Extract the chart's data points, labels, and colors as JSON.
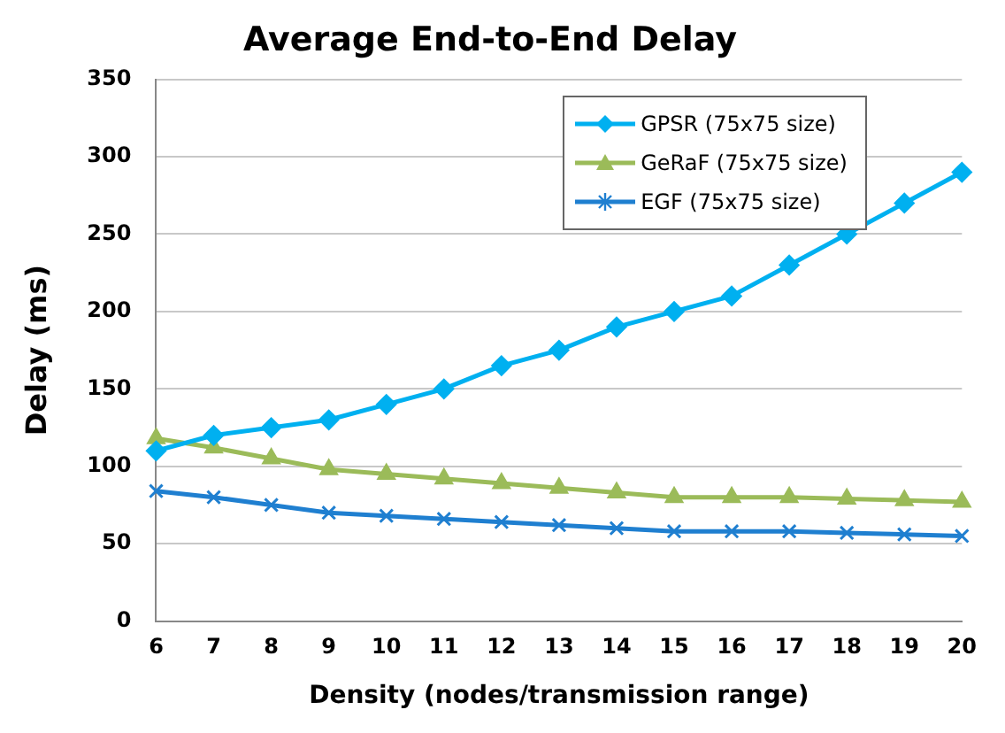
{
  "chart_data": {
    "type": "line",
    "title": "Average End-to-End Delay",
    "xlabel": "Density (nodes/transmission range)",
    "ylabel": "Delay (ms)",
    "categories": [
      "6",
      "7",
      "8",
      "9",
      "10",
      "11",
      "12",
      "13",
      "14",
      "15",
      "16",
      "17",
      "18",
      "19",
      "20"
    ],
    "series": [
      {
        "name": "GPSR (75x75 size)",
        "color": "#00b0f0",
        "marker": "diamond",
        "values": [
          110,
          120,
          125,
          130,
          140,
          150,
          165,
          175,
          190,
          200,
          210,
          230,
          250,
          270,
          290
        ]
      },
      {
        "name": "GeRaF (75x75 size)",
        "color": "#9bbb59",
        "marker": "triangle",
        "values": [
          118,
          112,
          105,
          98,
          95,
          92,
          89,
          86,
          83,
          80,
          80,
          80,
          79,
          78,
          77
        ]
      },
      {
        "name": "EGF (75x75 size)",
        "color": "#1f7fd0",
        "marker": "cross",
        "values": [
          84,
          80,
          75,
          70,
          68,
          66,
          64,
          62,
          60,
          58,
          58,
          58,
          57,
          56,
          55
        ]
      }
    ],
    "ylim": [
      0,
      350
    ],
    "yticks": [
      0,
      50,
      100,
      150,
      200,
      250,
      300,
      350
    ],
    "grid": "y",
    "legend": "top right",
    "line_style": "solid"
  }
}
